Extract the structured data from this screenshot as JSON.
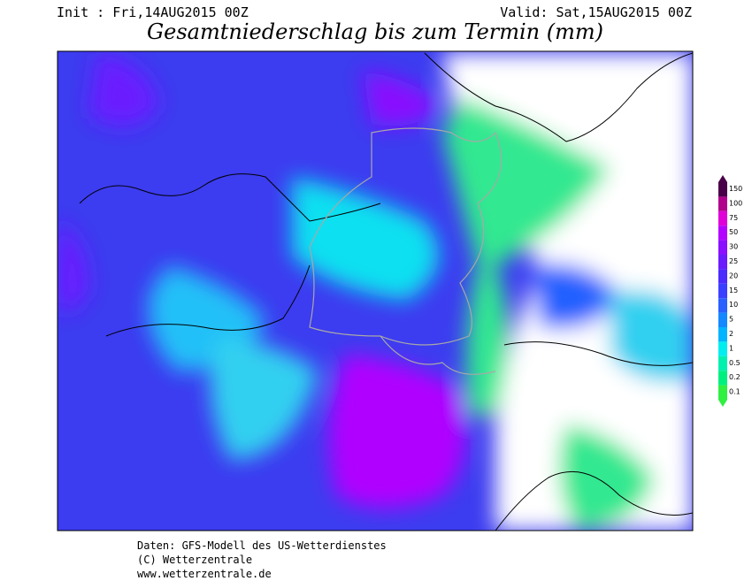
{
  "header": {
    "init": "Init : Fri,14AUG2015 00Z",
    "valid": "Valid: Sat,15AUG2015 00Z",
    "title": "Gesamtniederschlag bis zum Termin (mm)"
  },
  "legend": {
    "items": [
      {
        "label": "150",
        "color": "#4a0048"
      },
      {
        "label": "100",
        "color": "#b0008c"
      },
      {
        "label": "75",
        "color": "#e000d8"
      },
      {
        "label": "50",
        "color": "#b400ff"
      },
      {
        "label": "30",
        "color": "#8a10ff"
      },
      {
        "label": "25",
        "color": "#6a1cff"
      },
      {
        "label": "20",
        "color": "#4a2cff"
      },
      {
        "label": "15",
        "color": "#3a40ff"
      },
      {
        "label": "10",
        "color": "#2a60ff"
      },
      {
        "label": "5",
        "color": "#1488ff"
      },
      {
        "label": "2",
        "color": "#00b4ff"
      },
      {
        "label": "1",
        "color": "#00eef0"
      },
      {
        "label": "0.5",
        "color": "#00f0b0"
      },
      {
        "label": "0.2",
        "color": "#00f080"
      },
      {
        "label": "0.1",
        "color": "#30f040"
      }
    ]
  },
  "footer": {
    "lines": [
      "Daten: GFS-Modell des US-Wetterdienstes",
      "(C) Wetterzentrale",
      "www.wetterzentrale.de"
    ]
  }
}
